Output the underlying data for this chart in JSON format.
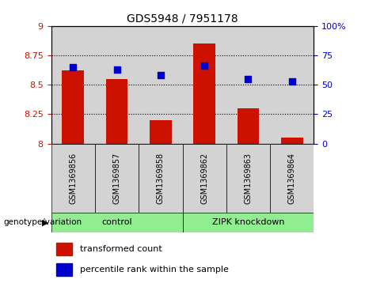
{
  "title": "GDS5948 / 7951178",
  "categories": [
    "GSM1369856",
    "GSM1369857",
    "GSM1369858",
    "GSM1369862",
    "GSM1369863",
    "GSM1369864"
  ],
  "red_values": [
    8.62,
    8.55,
    8.2,
    8.85,
    8.3,
    8.05
  ],
  "blue_values": [
    65,
    63,
    58,
    66,
    55,
    53
  ],
  "ylim_left": [
    8.0,
    9.0
  ],
  "ylim_right": [
    0,
    100
  ],
  "yticks_left": [
    8.0,
    8.25,
    8.5,
    8.75,
    9.0
  ],
  "yticks_right": [
    0,
    25,
    50,
    75,
    100
  ],
  "groups": [
    {
      "label": "control",
      "indices": [
        0,
        1,
        2
      ],
      "color": "#90EE90"
    },
    {
      "label": "ZIPK knockdown",
      "indices": [
        3,
        4,
        5
      ],
      "color": "#90EE90"
    }
  ],
  "group_bg_color": "#d3d3d3",
  "plot_bg_color": "#ffffff",
  "bar_color": "#cc1100",
  "dot_color": "#0000cc",
  "genotype_label": "genotype/variation",
  "legend_items": [
    {
      "label": "transformed count",
      "color": "#cc1100"
    },
    {
      "label": "percentile rank within the sample",
      "color": "#0000cc"
    }
  ],
  "grid_color": "#000000",
  "ytick_left_color": "#cc1100",
  "ytick_right_color": "#0000cc",
  "bar_width": 0.5,
  "dot_size": 30,
  "title_fontsize": 10
}
